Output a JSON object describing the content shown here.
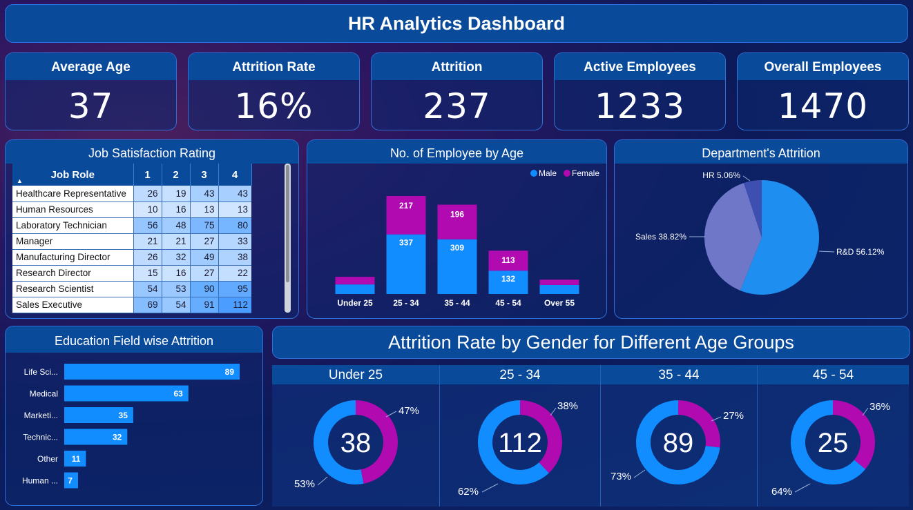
{
  "title": "HR Analytics Dashboard",
  "kpis": [
    {
      "label": "Average Age",
      "value": "37"
    },
    {
      "label": "Attrition Rate",
      "value": "16%"
    },
    {
      "label": "Attrition",
      "value": "237"
    },
    {
      "label": "Active Employees",
      "value": "1233"
    },
    {
      "label": "Overall Employees",
      "value": "1470"
    }
  ],
  "job_satisfaction": {
    "title": "Job Satisfaction Rating",
    "columns": [
      "Job Role",
      "1",
      "2",
      "3",
      "4"
    ],
    "rows": [
      {
        "role": "Healthcare Representative",
        "v": [
          26,
          19,
          43,
          43
        ]
      },
      {
        "role": "Human Resources",
        "v": [
          10,
          16,
          13,
          13
        ]
      },
      {
        "role": "Laboratory Technician",
        "v": [
          56,
          48,
          75,
          80
        ]
      },
      {
        "role": "Manager",
        "v": [
          21,
          21,
          27,
          33
        ]
      },
      {
        "role": "Manufacturing Director",
        "v": [
          26,
          32,
          49,
          38
        ]
      },
      {
        "role": "Research Director",
        "v": [
          15,
          16,
          27,
          22
        ]
      },
      {
        "role": "Research Scientist",
        "v": [
          54,
          53,
          90,
          95
        ]
      },
      {
        "role": "Sales Executive",
        "v": [
          69,
          54,
          91,
          112
        ]
      }
    ]
  },
  "colors": {
    "male": "#118dff",
    "female": "#b00ab0",
    "header": "#0a4a9a"
  },
  "chart_data": [
    {
      "type": "bar",
      "title": "No. of Employee by Age",
      "categories": [
        "Under 25",
        "25 - 34",
        "35 - 44",
        "45 - 54",
        "Over 55"
      ],
      "series": [
        {
          "name": "Male",
          "values": [
            54,
            337,
            309,
            132,
            51
          ]
        },
        {
          "name": "Female",
          "values": [
            43,
            217,
            196,
            113,
            30
          ]
        }
      ],
      "labels_shown": [
        [
          null,
          null
        ],
        [
          337,
          217
        ],
        [
          309,
          196
        ],
        [
          132,
          113
        ],
        [
          null,
          null
        ]
      ],
      "legend": "top-right"
    },
    {
      "type": "pie",
      "title": "Department's Attrition",
      "slices": [
        {
          "name": "R&D",
          "value": 56.12,
          "label": "R&D 56.12%",
          "color": "#1f8ef1"
        },
        {
          "name": "Sales",
          "value": 38.82,
          "label": "Sales 38.82%",
          "color": "#6f77c8"
        },
        {
          "name": "HR",
          "value": 5.06,
          "label": "HR 5.06%",
          "color": "#3d4fb0"
        }
      ]
    },
    {
      "type": "bar",
      "orientation": "horizontal",
      "title": "Education Field wise Attrition",
      "categories": [
        "Life Sci...",
        "Medical",
        "Marketi...",
        "Technic...",
        "Other",
        "Human ..."
      ],
      "values": [
        89,
        63,
        35,
        32,
        11,
        7
      ],
      "xlim": [
        0,
        89
      ]
    },
    {
      "type": "pie",
      "title": "Attrition Rate by Gender for Different Age Groups",
      "groups": [
        {
          "label": "Under 25",
          "total": "38",
          "male_pct": 53,
          "female_pct": 47,
          "male_label": "53%",
          "female_label": "47%"
        },
        {
          "label": "25 - 34",
          "total": "112",
          "male_pct": 62,
          "female_pct": 38,
          "male_label": "62%",
          "female_label": "38%"
        },
        {
          "label": "35 - 44",
          "total": "89",
          "male_pct": 73,
          "female_pct": 27,
          "male_label": "73%",
          "female_label": "27%"
        },
        {
          "label": "45 - 54",
          "total": "25",
          "male_pct": 64,
          "female_pct": 36,
          "male_label": "64%",
          "female_label": "36%"
        }
      ]
    }
  ]
}
